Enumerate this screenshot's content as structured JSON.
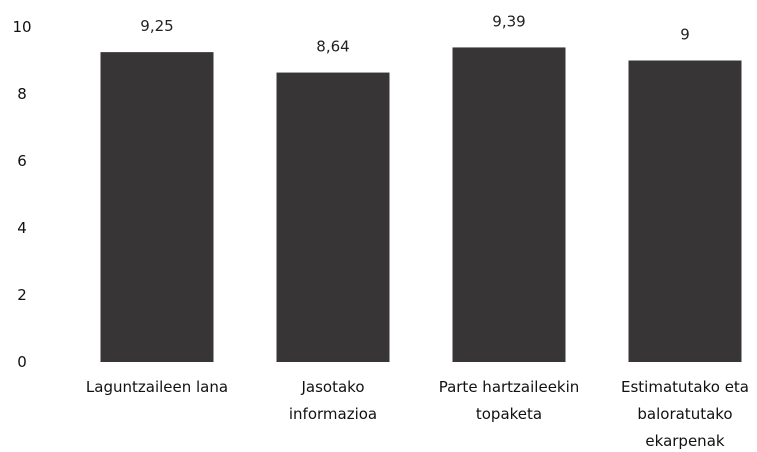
{
  "chart_data": {
    "type": "bar",
    "categories": [
      [
        "Laguntzaileen lana"
      ],
      [
        "Jasotako",
        "informazioa"
      ],
      [
        "Parte hartzaileekin",
        "topaketa"
      ],
      [
        "Estimatutako eta",
        "baloratutako",
        "ekarpenak"
      ]
    ],
    "values": [
      9.25,
      8.64,
      9.39,
      9
    ],
    "data_labels": [
      "9,25",
      "8,64",
      "9,39",
      "9"
    ],
    "yticks": [
      "0",
      "2",
      "4",
      "6",
      "8",
      "10"
    ],
    "ylim": [
      0,
      10
    ],
    "grid": false,
    "legend": "none",
    "colors": {
      "bar": "#383536",
      "text": "#111111"
    }
  }
}
